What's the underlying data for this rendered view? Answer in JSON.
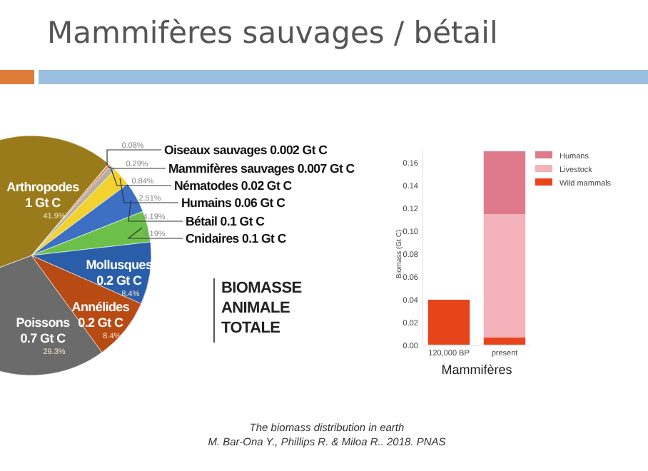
{
  "chart_data": [
    {
      "type": "pie",
      "title": "Mammifères sauvages / bétail",
      "categories": [
        "Oiseaux sauvages 0.002 Gt C",
        "Mammifères sauvages 0.007 Gt C",
        "Nématodes 0.02 Gt C",
        "Humains 0.06 Gt C",
        "Bétail 0.1 Gt C",
        "Cnidaires 0.1 Gt C",
        "Mollusques 0.2 Gt C",
        "Annélides 0.2 Gt C",
        "Poissons 0.7 Gt C",
        "Arthropodes 1 Gt C"
      ],
      "values": [
        0.08,
        0.29,
        0.84,
        2.51,
        4.19,
        4.19,
        8.4,
        8.4,
        29.3,
        41.9
      ],
      "value_labels": [
        "0.08%",
        "0.29%",
        "0.84%",
        "2.51%",
        "4.19%",
        "4.19%",
        "8.4%",
        "8.4%",
        "29.3%",
        "41.9%"
      ],
      "colors": [
        "#c9b38a",
        "#d98a5a",
        "#b5b0a0",
        "#f2d22e",
        "#3d6fc4",
        "#6cc04a",
        "#2a5ea8",
        "#b84a14",
        "#6b6b6b",
        "#9a7b1c"
      ],
      "annotations": [
        "BIOMASSE ANIMALE TOTALE"
      ]
    },
    {
      "type": "bar",
      "stacked": true,
      "xlabel": "Mammifères",
      "ylabel": "Biomass (Gt C)",
      "categories": [
        "120,000 BP",
        "present"
      ],
      "series": [
        {
          "name": "Wild mammals",
          "color": "#e8441c",
          "values": [
            0.04,
            0.007
          ]
        },
        {
          "name": "Livestock",
          "color": "#f4b3bb",
          "values": [
            0,
            0.108
          ]
        },
        {
          "name": "Humans",
          "color": "#de7a8b",
          "values": [
            0,
            0.055
          ]
        }
      ],
      "ylim": [
        0,
        0.17
      ],
      "yticks": [
        {
          "value": 0,
          "label": "0.00"
        },
        {
          "value": 0.02,
          "label": "0.02"
        },
        {
          "value": 0.04,
          "label": "0.04"
        },
        {
          "value": 0.06,
          "label": "0.06"
        },
        {
          "value": 0.08,
          "label": "0.08"
        },
        {
          "value": 0.1,
          "label": "0.10"
        },
        {
          "value": 0.12,
          "label": "0.12"
        },
        {
          "value": 0.14,
          "label": "0.14"
        },
        {
          "value": 0.16,
          "label": "0.16"
        }
      ],
      "legend": "top right",
      "annotations": [
        "The biomass distribution in earth",
        "M. Bar-Ona Y., Phillips R. & Miloa R.. 2018. PNAS"
      ]
    }
  ]
}
